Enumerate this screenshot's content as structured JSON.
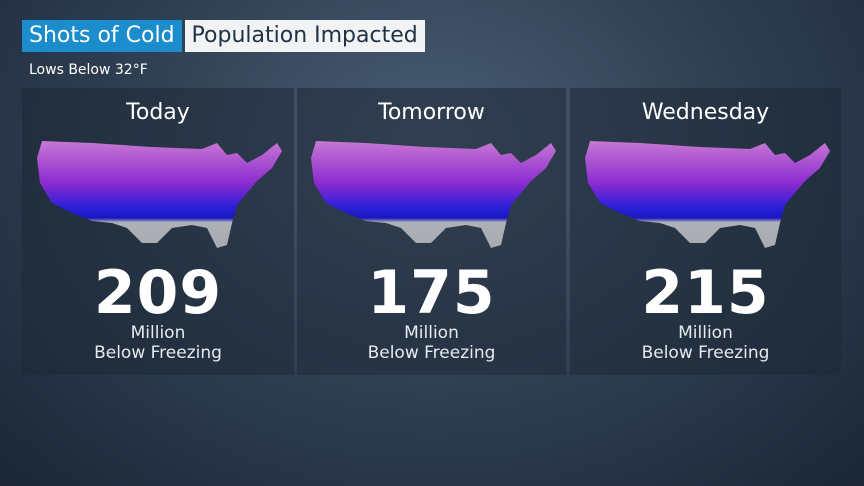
{
  "header": {
    "title": "Shots of Cold",
    "subtitle": "Population Impacted",
    "note": "Lows Below 32°F"
  },
  "panels": [
    {
      "day": "Today",
      "number": "209",
      "unit": "Million",
      "label": "Below Freezing"
    },
    {
      "day": "Tomorrow",
      "number": "175",
      "unit": "Million",
      "label": "Below Freezing"
    },
    {
      "day": "Wednesday",
      "number": "215",
      "unit": "Million",
      "label": "Below Freezing"
    }
  ]
}
